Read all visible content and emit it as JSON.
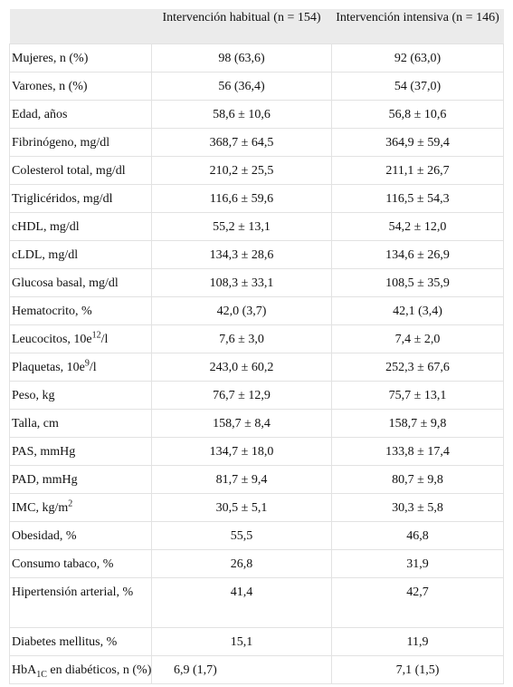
{
  "table": {
    "header": [
      "",
      "Intervención habitual (n = 154)",
      "Intervención intensiva (n = 146)"
    ],
    "rows": [
      {
        "label": "Mujeres, n (%)",
        "values": [
          "98 (63,6)",
          "92 (63,0)"
        ]
      },
      {
        "label": "Varones, n (%)",
        "values": [
          "56 (36,4)",
          "54 (37,0)"
        ]
      },
      {
        "label": "Edad, años",
        "values": [
          "58,6 ± 10,6",
          "56,8 ± 10,6"
        ]
      },
      {
        "label": "Fibrinógeno, mg/dl",
        "values": [
          "368,7 ± 64,5",
          "364,9 ± 59,4"
        ]
      },
      {
        "label": "Colesterol total, mg/dl",
        "values": [
          "210,2 ± 25,5",
          "211,1 ± 26,7"
        ]
      },
      {
        "label": "Triglicéridos, mg/dl",
        "values": [
          "116,6 ± 59,6",
          "116,5 ± 54,3"
        ]
      },
      {
        "label": "cHDL, mg/dl",
        "values": [
          "55,2 ± 13,1",
          "54,2 ± 12,0"
        ]
      },
      {
        "label": "cLDL, mg/dl",
        "values": [
          "134,3 ± 28,6",
          "134,6 ± 26,9"
        ]
      },
      {
        "label": "Glucosa basal, mg/dl",
        "values": [
          "108,3 ± 33,1",
          "108,5 ± 35,9"
        ]
      },
      {
        "label": "Hematocrito, %",
        "values": [
          "42,0 (3,7)",
          "42,1 (3,4)"
        ]
      },
      {
        "label_parts": [
          {
            "text": "Leucocitos, 10e"
          },
          {
            "text": "12",
            "style": "sup"
          },
          {
            "text": "/l"
          }
        ],
        "values": [
          "7,6 ± 3,0",
          "7,4 ± 2,0"
        ]
      },
      {
        "label_parts": [
          {
            "text": "Plaquetas, 10e"
          },
          {
            "text": "9",
            "style": "sup"
          },
          {
            "text": "/l"
          }
        ],
        "values": [
          "243,0 ± 60,2",
          "252,3 ± 67,6"
        ]
      },
      {
        "label": "Peso, kg",
        "values": [
          "76,7 ± 12,9",
          "75,7 ± 13,1"
        ]
      },
      {
        "label": "Talla, cm",
        "values": [
          "158,7 ± 8,4",
          "158,7 ± 9,8"
        ]
      },
      {
        "label": "PAS, mmHg",
        "values": [
          "134,7 ± 18,0",
          "133,8 ± 17,4"
        ]
      },
      {
        "label": "PAD, mmHg",
        "values": [
          "81,7 ± 9,4",
          "80,7 ± 9,8"
        ]
      },
      {
        "label_parts": [
          {
            "text": "IMC, kg/m"
          },
          {
            "text": "2",
            "style": "sup"
          }
        ],
        "values": [
          "30,5 ± 5,1",
          "30,3 ± 5,8"
        ]
      },
      {
        "label": "Obesidad, %",
        "values": [
          "55,5",
          "46,8"
        ]
      },
      {
        "label": "Consumo tabaco, %",
        "values": [
          "26,8",
          "31,9"
        ]
      },
      {
        "label": "Hipertensión arterial, %",
        "values": [
          "41,4",
          "42,7"
        ],
        "tall": true
      },
      {
        "label": "Diabetes mellitus, %",
        "values": [
          "15,1",
          "11,9"
        ]
      },
      {
        "label_parts": [
          {
            "text": "HbA"
          },
          {
            "text": "1C",
            "style": "sub"
          },
          {
            "text": " en diabéticos, n (%)"
          }
        ],
        "values": [
          "6,9 (1,7)",
          "7,1 (1,5)"
        ],
        "overflow": true
      }
    ]
  }
}
